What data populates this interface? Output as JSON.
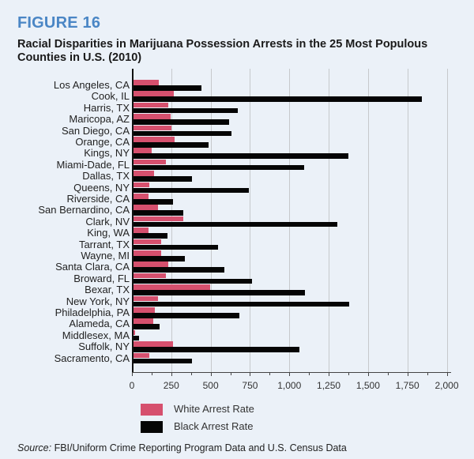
{
  "figure_label": "FIGURE 16",
  "title": "Racial Disparities in Marijuana Possession Arrests in the 25 Most Populous Counties in U.S. (2010)",
  "legend": {
    "white_label": "White Arrest Rate",
    "black_label": "Black Arrest Rate"
  },
  "source": {
    "prefix": "Source:",
    "text": " FBI/Uniform Crime Reporting Program Data and U.S. Census Data"
  },
  "colors": {
    "background": "#ebf1f8",
    "figure_label": "#4a86c5",
    "white_series": "#d6506e",
    "black_series": "#050505"
  },
  "chart_data": {
    "type": "bar",
    "orientation": "horizontal",
    "title": "Racial Disparities in Marijuana Possession Arrests in the 25 Most Populous Counties in U.S. (2010)",
    "xlabel": "",
    "ylabel": "",
    "xlim": [
      0,
      2000
    ],
    "xticks": [
      0,
      250,
      500,
      750,
      1000,
      1250,
      1500,
      1750,
      2000
    ],
    "xtick_labels": [
      "0",
      "250",
      "500",
      "750",
      "1,000",
      "1,250",
      "1,500",
      "1,750",
      "2,000"
    ],
    "grid": "vertical",
    "legend_position": "bottom",
    "categories": [
      "Los Angeles, CA",
      "Cook, IL",
      "Harris, TX",
      "Maricopa, AZ",
      "San Diego, CA",
      "Orange, CA",
      "Kings, NY",
      "Miami-Dade, FL",
      "Dallas, TX",
      "Queens, NY",
      "Riverside, CA",
      "San Bernardino, CA",
      "Clark, NV",
      "King, WA",
      "Tarrant, TX",
      "Wayne, MI",
      "Santa Clara, CA",
      "Broward, FL",
      "Bexar, TX",
      "New York, NY",
      "Philadelphia, PA",
      "Alameda, CA",
      "Middlesex, MA",
      "Suffolk, NY",
      "Sacramento, CA"
    ],
    "series": [
      {
        "name": "White Arrest Rate",
        "color": "#d6506e",
        "values": [
          165,
          261,
          224,
          242,
          246,
          267,
          122,
          209,
          135,
          105,
          102,
          159,
          319,
          100,
          180,
          179,
          226,
          212,
          493,
          159,
          142,
          129,
          15,
          257,
          105
        ]
      },
      {
        "name": "Black Arrest Rate",
        "color": "#050505",
        "values": [
          436,
          1835,
          667,
          613,
          625,
          483,
          1372,
          1089,
          377,
          737,
          257,
          319,
          1302,
          221,
          540,
          333,
          580,
          757,
          1094,
          1375,
          677,
          170,
          39,
          1058,
          374
        ]
      }
    ]
  }
}
